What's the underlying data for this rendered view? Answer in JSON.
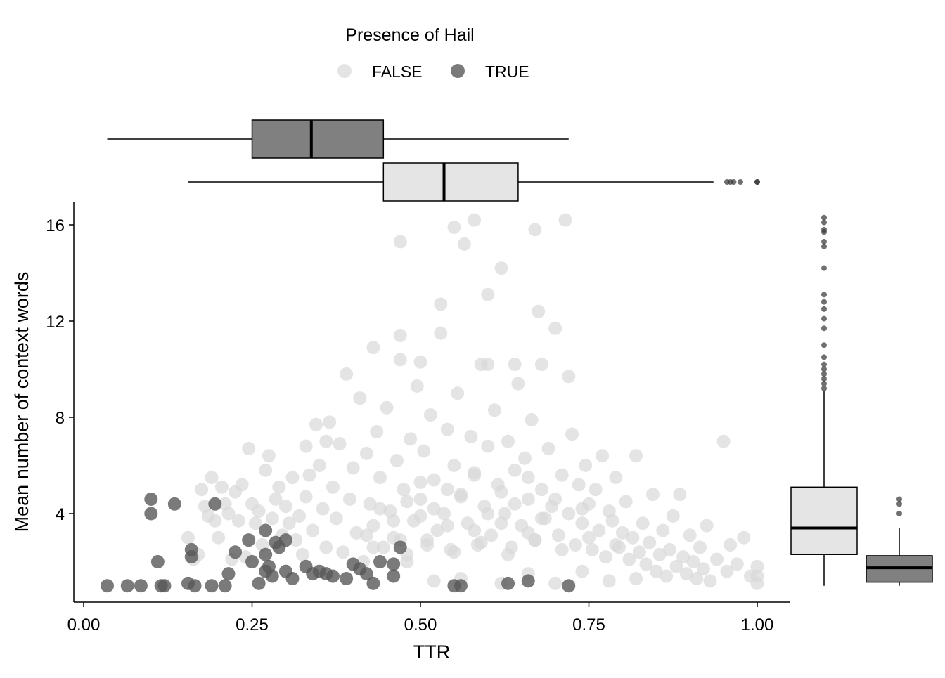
{
  "chart_data": {
    "type": "scatter",
    "legend": {
      "title": "Presence of Hail",
      "placement": "top",
      "entries": [
        {
          "label": "FALSE",
          "color": "#d9d9d9"
        },
        {
          "label": "TRUE",
          "color": "#595959"
        }
      ]
    },
    "xlabel": "TTR",
    "ylabel": "Mean number of context words",
    "xlim": [
      -0.03,
      1.05
    ],
    "ylim": [
      0.4,
      16.9
    ],
    "xticks": [
      "0.00",
      "0.25",
      "0.50",
      "0.75",
      "1.00"
    ],
    "yticks": [
      "4",
      "8",
      "12",
      "16"
    ],
    "grid": false,
    "series": [
      {
        "name": "FALSE",
        "color": "#d9d9d9",
        "points": [
          [
            0.155,
            3.0
          ],
          [
            0.163,
            2.1
          ],
          [
            0.17,
            2.3
          ],
          [
            0.175,
            5.0
          ],
          [
            0.18,
            4.3
          ],
          [
            0.185,
            3.9
          ],
          [
            0.19,
            5.5
          ],
          [
            0.195,
            3.7
          ],
          [
            0.2,
            3.0
          ],
          [
            0.205,
            5.1
          ],
          [
            0.21,
            4.4
          ],
          [
            0.215,
            4.0
          ],
          [
            0.22,
            2.1
          ],
          [
            0.225,
            4.9
          ],
          [
            0.23,
            3.7
          ],
          [
            0.235,
            5.2
          ],
          [
            0.24,
            2.2
          ],
          [
            0.245,
            6.7
          ],
          [
            0.25,
            4.4
          ],
          [
            0.255,
            3.6
          ],
          [
            0.26,
            4.1
          ],
          [
            0.265,
            2.7
          ],
          [
            0.27,
            5.8
          ],
          [
            0.275,
            6.4
          ],
          [
            0.28,
            3.8
          ],
          [
            0.285,
            4.6
          ],
          [
            0.29,
            5.1
          ],
          [
            0.295,
            3.1
          ],
          [
            0.3,
            4.3
          ],
          [
            0.305,
            3.6
          ],
          [
            0.31,
            5.5
          ],
          [
            0.315,
            2.9
          ],
          [
            0.32,
            3.9
          ],
          [
            0.325,
            2.3
          ],
          [
            0.33,
            4.7
          ],
          [
            0.335,
            5.6
          ],
          [
            0.34,
            3.3
          ],
          [
            0.345,
            7.7
          ],
          [
            0.35,
            6.0
          ],
          [
            0.355,
            4.2
          ],
          [
            0.36,
            2.6
          ],
          [
            0.365,
            7.8
          ],
          [
            0.37,
            5.1
          ],
          [
            0.375,
            3.8
          ],
          [
            0.38,
            6.9
          ],
          [
            0.385,
            2.4
          ],
          [
            0.39,
            9.8
          ],
          [
            0.395,
            4.6
          ],
          [
            0.4,
            5.9
          ],
          [
            0.405,
            3.2
          ],
          [
            0.41,
            8.8
          ],
          [
            0.415,
            2.0
          ],
          [
            0.42,
            6.5
          ],
          [
            0.425,
            4.4
          ],
          [
            0.43,
            3.5
          ],
          [
            0.435,
            7.4
          ],
          [
            0.44,
            5.5
          ],
          [
            0.445,
            2.6
          ],
          [
            0.45,
            8.4
          ],
          [
            0.455,
            4.1
          ],
          [
            0.46,
            3.0
          ],
          [
            0.465,
            6.2
          ],
          [
            0.47,
            10.4
          ],
          [
            0.475,
            5.0
          ],
          [
            0.48,
            2.3
          ],
          [
            0.485,
            7.1
          ],
          [
            0.49,
            3.7
          ],
          [
            0.495,
            9.3
          ],
          [
            0.5,
            4.6
          ],
          [
            0.505,
            6.6
          ],
          [
            0.51,
            2.9
          ],
          [
            0.515,
            8.1
          ],
          [
            0.52,
            5.4
          ],
          [
            0.525,
            3.3
          ],
          [
            0.53,
            12.7
          ],
          [
            0.535,
            4.0
          ],
          [
            0.54,
            7.5
          ],
          [
            0.545,
            2.5
          ],
          [
            0.55,
            6.0
          ],
          [
            0.555,
            9.0
          ],
          [
            0.56,
            4.8
          ],
          [
            0.565,
            15.2
          ],
          [
            0.57,
            3.6
          ],
          [
            0.575,
            7.2
          ],
          [
            0.58,
            5.6
          ],
          [
            0.585,
            2.7
          ],
          [
            0.59,
            10.2
          ],
          [
            0.595,
            4.3
          ],
          [
            0.6,
            6.8
          ],
          [
            0.605,
            3.1
          ],
          [
            0.61,
            8.3
          ],
          [
            0.615,
            5.2
          ],
          [
            0.62,
            14.2
          ],
          [
            0.625,
            4.0
          ],
          [
            0.63,
            7.0
          ],
          [
            0.635,
            2.6
          ],
          [
            0.64,
            5.8
          ],
          [
            0.645,
            9.4
          ],
          [
            0.65,
            3.5
          ],
          [
            0.655,
            6.3
          ],
          [
            0.66,
            4.6
          ],
          [
            0.665,
            7.9
          ],
          [
            0.67,
            2.9
          ],
          [
            0.675,
            12.4
          ],
          [
            0.68,
            5.0
          ],
          [
            0.685,
            3.8
          ],
          [
            0.69,
            6.7
          ],
          [
            0.695,
            4.3
          ],
          [
            0.7,
            11.7
          ],
          [
            0.705,
            3.1
          ],
          [
            0.71,
            5.6
          ],
          [
            0.715,
            16.2
          ],
          [
            0.72,
            4.0
          ],
          [
            0.725,
            7.3
          ],
          [
            0.73,
            2.7
          ],
          [
            0.735,
            5.2
          ],
          [
            0.74,
            3.6
          ],
          [
            0.745,
            6.0
          ],
          [
            0.75,
            4.4
          ],
          [
            0.755,
            2.5
          ],
          [
            0.76,
            5.0
          ],
          [
            0.765,
            3.3
          ],
          [
            0.77,
            6.4
          ],
          [
            0.775,
            2.2
          ],
          [
            0.78,
            4.1
          ],
          [
            0.785,
            3.7
          ],
          [
            0.79,
            5.5
          ],
          [
            0.795,
            2.6
          ],
          [
            0.8,
            3.2
          ],
          [
            0.805,
            4.5
          ],
          [
            0.81,
            2.1
          ],
          [
            0.815,
            3.0
          ],
          [
            0.82,
            6.4
          ],
          [
            0.825,
            2.4
          ],
          [
            0.83,
            3.6
          ],
          [
            0.835,
            1.9
          ],
          [
            0.84,
            2.8
          ],
          [
            0.845,
            4.8
          ],
          [
            0.85,
            1.6
          ],
          [
            0.855,
            2.3
          ],
          [
            0.86,
            3.3
          ],
          [
            0.865,
            1.4
          ],
          [
            0.87,
            2.5
          ],
          [
            0.875,
            3.9
          ],
          [
            0.88,
            1.8
          ],
          [
            0.885,
            4.8
          ],
          [
            0.89,
            2.2
          ],
          [
            0.895,
            1.5
          ],
          [
            0.9,
            3.1
          ],
          [
            0.905,
            2.0
          ],
          [
            0.91,
            1.3
          ],
          [
            0.915,
            2.6
          ],
          [
            0.92,
            1.7
          ],
          [
            0.925,
            3.5
          ],
          [
            0.93,
            1.2
          ],
          [
            0.94,
            2.1
          ],
          [
            0.95,
            7.0
          ],
          [
            0.955,
            1.6
          ],
          [
            0.96,
            2.7
          ],
          [
            0.97,
            1.9
          ],
          [
            0.98,
            3.0
          ],
          [
            0.99,
            1.4
          ],
          [
            1.0,
            1.8
          ],
          [
            1.0,
            1.4
          ],
          [
            1.0,
            1.1
          ],
          [
            0.47,
            15.3
          ],
          [
            0.55,
            15.9
          ],
          [
            0.58,
            16.2
          ],
          [
            0.67,
            15.8
          ],
          [
            0.6,
            13.1
          ],
          [
            0.72,
            9.7
          ],
          [
            0.53,
            11.5
          ],
          [
            0.47,
            11.4
          ],
          [
            0.43,
            10.9
          ],
          [
            0.5,
            10.3
          ],
          [
            0.6,
            10.2
          ],
          [
            0.64,
            10.2
          ],
          [
            0.68,
            10.2
          ],
          [
            0.33,
            6.8
          ],
          [
            0.36,
            7.0
          ],
          [
            0.42,
            3.1
          ],
          [
            0.48,
            2.0
          ],
          [
            0.52,
            1.2
          ],
          [
            0.56,
            1.3
          ],
          [
            0.62,
            1.1
          ],
          [
            0.66,
            1.5
          ],
          [
            0.7,
            1.1
          ],
          [
            0.74,
            1.6
          ],
          [
            0.78,
            1.2
          ],
          [
            0.82,
            1.3
          ],
          [
            0.5,
            3.9
          ],
          [
            0.52,
            4.2
          ],
          [
            0.54,
            3.5
          ],
          [
            0.56,
            4.7
          ],
          [
            0.58,
            3.3
          ],
          [
            0.6,
            4.0
          ],
          [
            0.62,
            3.6
          ],
          [
            0.64,
            4.4
          ],
          [
            0.66,
            3.2
          ],
          [
            0.68,
            3.8
          ],
          [
            0.48,
            4.5
          ],
          [
            0.46,
            3.7
          ],
          [
            0.44,
            4.2
          ],
          [
            0.5,
            5.3
          ],
          [
            0.54,
            5.0
          ],
          [
            0.58,
            5.7
          ],
          [
            0.62,
            4.9
          ],
          [
            0.66,
            5.5
          ],
          [
            0.7,
            4.6
          ],
          [
            0.74,
            4.2
          ],
          [
            0.51,
            2.7
          ],
          [
            0.55,
            2.4
          ],
          [
            0.59,
            2.8
          ],
          [
            0.63,
            2.3
          ],
          [
            0.67,
            2.9
          ],
          [
            0.71,
            2.5
          ],
          [
            0.75,
            3.0
          ],
          [
            0.79,
            2.7
          ],
          [
            0.47,
            2.9
          ],
          [
            0.43,
            2.6
          ]
        ]
      },
      {
        "name": "TRUE",
        "color": "#595959",
        "points": [
          [
            0.035,
            1.0
          ],
          [
            0.065,
            1.0
          ],
          [
            0.085,
            1.0
          ],
          [
            0.1,
            4.6
          ],
          [
            0.1,
            4.0
          ],
          [
            0.11,
            2.0
          ],
          [
            0.115,
            1.0
          ],
          [
            0.12,
            1.0
          ],
          [
            0.135,
            4.4
          ],
          [
            0.155,
            1.1
          ],
          [
            0.16,
            2.5
          ],
          [
            0.16,
            2.2
          ],
          [
            0.165,
            1.0
          ],
          [
            0.19,
            1.0
          ],
          [
            0.195,
            4.4
          ],
          [
            0.21,
            1.0
          ],
          [
            0.215,
            1.5
          ],
          [
            0.225,
            2.4
          ],
          [
            0.245,
            2.9
          ],
          [
            0.26,
            1.1
          ],
          [
            0.27,
            3.3
          ],
          [
            0.27,
            2.3
          ],
          [
            0.275,
            1.8
          ],
          [
            0.28,
            1.4
          ],
          [
            0.285,
            2.8
          ],
          [
            0.29,
            2.6
          ],
          [
            0.3,
            1.6
          ],
          [
            0.31,
            1.3
          ],
          [
            0.33,
            1.8
          ],
          [
            0.34,
            1.5
          ],
          [
            0.35,
            1.6
          ],
          [
            0.36,
            1.5
          ],
          [
            0.37,
            1.4
          ],
          [
            0.39,
            1.3
          ],
          [
            0.4,
            1.9
          ],
          [
            0.41,
            1.7
          ],
          [
            0.42,
            1.5
          ],
          [
            0.43,
            1.1
          ],
          [
            0.44,
            2.0
          ],
          [
            0.46,
            1.4
          ],
          [
            0.47,
            2.6
          ],
          [
            0.46,
            1.9
          ],
          [
            0.55,
            1.0
          ],
          [
            0.56,
            1.0
          ],
          [
            0.63,
            1.1
          ],
          [
            0.66,
            1.2
          ],
          [
            0.72,
            1.0
          ],
          [
            0.25,
            2.0
          ],
          [
            0.3,
            2.9
          ],
          [
            0.27,
            1.6
          ]
        ]
      }
    ],
    "marginal_top": {
      "type": "boxplot",
      "boxes": [
        {
          "group": "TRUE",
          "color": "#808080",
          "min": 0.035,
          "q1": 0.25,
          "median": 0.338,
          "q3": 0.445,
          "max": 0.72,
          "outliers": []
        },
        {
          "group": "FALSE",
          "color": "#e5e5e5",
          "min": 0.155,
          "q1": 0.445,
          "median": 0.535,
          "q3": 0.645,
          "max": 0.935,
          "outliers": [
            0.955,
            0.96,
            0.965,
            0.975,
            1.0,
            1.0
          ]
        }
      ]
    },
    "marginal_right": {
      "type": "boxplot",
      "boxes": [
        {
          "group": "FALSE",
          "color": "#e5e5e5",
          "min": 1.0,
          "q1": 2.3,
          "median": 3.4,
          "q3": 5.1,
          "max": 9.1,
          "outliers": [
            9.2,
            9.4,
            9.6,
            9.8,
            10.0,
            10.2,
            10.5,
            11.0,
            11.7,
            12.1,
            12.5,
            12.8,
            13.1,
            14.2,
            15.1,
            15.3,
            15.7,
            15.8,
            16.1,
            16.3
          ]
        },
        {
          "group": "TRUE",
          "color": "#808080",
          "min": 1.0,
          "q1": 1.15,
          "median": 1.75,
          "q3": 2.25,
          "max": 3.4,
          "outliers": [
            4.0,
            4.4,
            4.6
          ]
        }
      ]
    }
  }
}
